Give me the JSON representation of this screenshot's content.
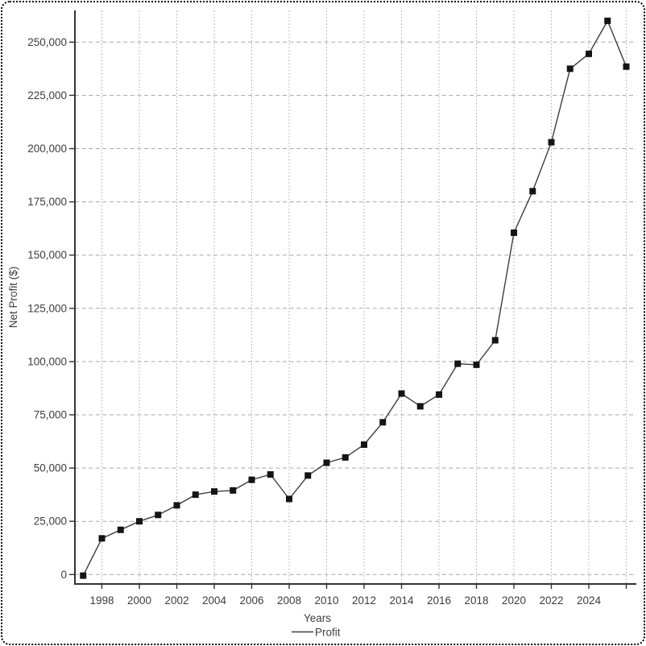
{
  "chart_data": {
    "type": "line",
    "title": "",
    "xlabel": "Years",
    "ylabel": "Net Profit ($)",
    "legend_position": "bottom-center",
    "grid": "on-dotted",
    "marker": "filled-square",
    "series": [
      {
        "name": "Profit",
        "x": [
          1997,
          1998,
          1999,
          2000,
          2001,
          2002,
          2003,
          2004,
          2005,
          2006,
          2007,
          2008,
          2009,
          2010,
          2011,
          2012,
          2013,
          2014,
          2015,
          2016,
          2017,
          2018,
          2019,
          2020,
          2021,
          2022,
          2023,
          2024,
          2025,
          2026
        ],
        "values": [
          -500,
          17000,
          21000,
          25000,
          28000,
          32500,
          37500,
          39000,
          39500,
          44500,
          47000,
          35500,
          46500,
          52500,
          55000,
          61000,
          71500,
          85000,
          79000,
          84500,
          99000,
          98500,
          110000,
          160500,
          180000,
          203000,
          237500,
          244500,
          260000,
          238500
        ]
      }
    ],
    "x_tick_labels": [
      "1998",
      "2000",
      "2002",
      "2004",
      "2006",
      "2008",
      "2010",
      "2012",
      "2014",
      "2016",
      "2018",
      "2020",
      "2022",
      "2024"
    ],
    "x_gridline_years": [
      1998,
      2000,
      2002,
      2004,
      2006,
      2008,
      2010,
      2012,
      2014,
      2016,
      2018,
      2020,
      2022,
      2024,
      2026
    ],
    "y_ticks": [
      0,
      25000,
      50000,
      75000,
      100000,
      125000,
      150000,
      175000,
      200000,
      225000,
      250000
    ],
    "y_tick_labels": [
      "0",
      "25,000",
      "50,000",
      "75,000",
      "100,000",
      "125,000",
      "150,000",
      "175,000",
      "200,000",
      "225,000",
      "250,000"
    ],
    "xlim": [
      1996.6,
      2026.5
    ],
    "ylim": [
      -4400,
      264800
    ],
    "style": {
      "line_color": "#3d3d3d",
      "marker_color": "#141414",
      "grid_color": "#a8a8a8",
      "axis_color": "#333333",
      "text_color": "#3d3d3d",
      "background": "#ffffff"
    }
  }
}
